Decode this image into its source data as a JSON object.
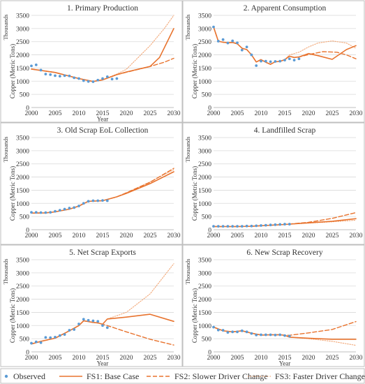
{
  "colors": {
    "observed": "#5b9bd5",
    "fs1": "#e8732e",
    "fs2": "#e8732e",
    "fs3": "#f2a878"
  },
  "legend": {
    "observed": "Observed",
    "fs1": "FS1: Base Case",
    "fs2": "FS2: Slower Driver Change",
    "fs3": "FS3: Faster Driver Change"
  },
  "chart_data": [
    {
      "type": "line",
      "title": "1. Primary Production",
      "xlabel": "Year",
      "ylabel": "Copper (Metric Tons)",
      "yunit": "Thousands",
      "xlim": [
        2000,
        2030
      ],
      "ylim": [
        0,
        3500
      ],
      "xticks": [
        "2000",
        "2005",
        "2010",
        "2015",
        "2020",
        "2025",
        "2030"
      ],
      "yticks": [
        "0",
        "500",
        "1000",
        "1500",
        "2000",
        "2500",
        "3000",
        "3500"
      ],
      "grid": true,
      "series": [
        {
          "name": "Observed",
          "style": "scatter",
          "x": [
            2000,
            2001,
            2002,
            2003,
            2004,
            2005,
            2006,
            2007,
            2008,
            2009,
            2010,
            2011,
            2012,
            2013,
            2014,
            2015,
            2016,
            2017,
            2018
          ],
          "y": [
            1580,
            1620,
            1420,
            1270,
            1250,
            1210,
            1190,
            1210,
            1200,
            1130,
            1100,
            1020,
            990,
            980,
            1040,
            1100,
            1170,
            1080,
            1100
          ]
        },
        {
          "name": "FS1: Base Case",
          "style": "solid",
          "x": [
            2000,
            2005,
            2010,
            2013,
            2015,
            2018,
            2020,
            2025,
            2027,
            2030
          ],
          "y": [
            1460,
            1330,
            1100,
            990,
            1050,
            1250,
            1350,
            1560,
            1900,
            3000
          ]
        },
        {
          "name": "FS2: Slower Driver Change",
          "style": "dashed",
          "x": [
            2000,
            2005,
            2010,
            2013,
            2015,
            2018,
            2020,
            2025,
            2028,
            2030
          ],
          "y": [
            1460,
            1330,
            1100,
            990,
            1050,
            1250,
            1340,
            1560,
            1720,
            1870
          ]
        },
        {
          "name": "FS3: Faster Driver Change",
          "style": "dotted",
          "x": [
            2000,
            2005,
            2010,
            2013,
            2015,
            2018,
            2020,
            2025,
            2028,
            2030
          ],
          "y": [
            1460,
            1330,
            1100,
            990,
            1050,
            1270,
            1450,
            2350,
            3000,
            3500
          ]
        }
      ]
    },
    {
      "type": "line",
      "title": "2. Apparent Consumption",
      "xlabel": "",
      "ylabel": "Copper (Metric Tons)",
      "yunit": "Thousands",
      "xlim": [
        2000,
        2030
      ],
      "ylim": [
        0,
        3500
      ],
      "xticks": [
        "2000",
        "2005",
        "2010",
        "2015",
        "2020",
        "2025",
        "2030"
      ],
      "yticks": [
        "0",
        "500",
        "1000",
        "1500",
        "2000",
        "2500",
        "3000",
        "3500"
      ],
      "grid": true,
      "series": [
        {
          "name": "Observed",
          "style": "scatter",
          "x": [
            2000,
            2001,
            2002,
            2003,
            2004,
            2005,
            2006,
            2007,
            2008,
            2009,
            2010,
            2011,
            2012,
            2013,
            2014,
            2015,
            2016,
            2017,
            2018
          ],
          "y": [
            3060,
            2520,
            2580,
            2450,
            2530,
            2460,
            2180,
            2300,
            2000,
            1590,
            1760,
            1760,
            1740,
            1750,
            1760,
            1800,
            1850,
            1800,
            1850
          ]
        },
        {
          "name": "FS1: Base Case",
          "style": "solid",
          "x": [
            2000,
            2001,
            2002,
            2003,
            2004,
            2005,
            2006,
            2007,
            2008,
            2009,
            2010,
            2011,
            2012,
            2013,
            2014,
            2015,
            2016,
            2017,
            2018,
            2020,
            2022,
            2025,
            2028,
            2030
          ],
          "y": [
            3060,
            2520,
            2480,
            2460,
            2470,
            2420,
            2250,
            2200,
            2000,
            1730,
            1820,
            1720,
            1640,
            1740,
            1750,
            1820,
            1950,
            1900,
            1920,
            2050,
            1970,
            1830,
            2200,
            2350
          ]
        },
        {
          "name": "FS2: Slower Driver Change",
          "style": "dashed",
          "x": [
            2000,
            2001,
            2002,
            2003,
            2004,
            2005,
            2006,
            2007,
            2008,
            2009,
            2010,
            2011,
            2012,
            2013,
            2014,
            2015,
            2016,
            2017,
            2018,
            2020,
            2023,
            2026,
            2028,
            2030
          ],
          "y": [
            3060,
            2520,
            2480,
            2460,
            2470,
            2420,
            2250,
            2200,
            2000,
            1730,
            1820,
            1720,
            1640,
            1740,
            1750,
            1820,
            1950,
            1900,
            1920,
            2010,
            2120,
            2100,
            2000,
            1850
          ]
        },
        {
          "name": "FS3: Faster Driver Change",
          "style": "dotted",
          "x": [
            2000,
            2001,
            2002,
            2003,
            2004,
            2005,
            2006,
            2007,
            2008,
            2009,
            2010,
            2011,
            2012,
            2013,
            2014,
            2015,
            2016,
            2017,
            2018,
            2020,
            2022,
            2025,
            2028,
            2030
          ],
          "y": [
            3060,
            2520,
            2480,
            2460,
            2470,
            2420,
            2250,
            2200,
            2000,
            1730,
            1820,
            1720,
            1640,
            1740,
            1750,
            1820,
            2000,
            2050,
            2100,
            2300,
            2450,
            2530,
            2450,
            2250
          ]
        }
      ]
    },
    {
      "type": "line",
      "title": "3. Old Scrap EoL Collection",
      "xlabel": "",
      "ylabel": "Copper (Metric Tons)",
      "yunit": "Thousands",
      "xlim": [
        2000,
        2030
      ],
      "ylim": [
        0,
        3500
      ],
      "xticks": [
        "2000",
        "2005",
        "2010",
        "2015",
        "2020",
        "2025",
        "2030"
      ],
      "yticks": [
        "0",
        "500",
        "1000",
        "1500",
        "2000",
        "2500",
        "3000",
        "3500"
      ],
      "grid": true,
      "series": [
        {
          "name": "Observed",
          "style": "scatter",
          "x": [
            2000,
            2001,
            2002,
            2003,
            2004,
            2005,
            2006,
            2007,
            2008,
            2009,
            2010,
            2011,
            2012,
            2013,
            2014,
            2015,
            2016
          ],
          "y": [
            660,
            660,
            650,
            650,
            660,
            700,
            740,
            780,
            820,
            840,
            900,
            1000,
            1080,
            1100,
            1100,
            1110,
            1100
          ]
        },
        {
          "name": "FS1: Base Case",
          "style": "solid",
          "x": [
            2000,
            2003,
            2005,
            2008,
            2010,
            2012,
            2015,
            2016,
            2018,
            2020,
            2025,
            2030
          ],
          "y": [
            630,
            640,
            680,
            780,
            900,
            1080,
            1100,
            1150,
            1250,
            1380,
            1750,
            2200
          ]
        },
        {
          "name": "FS2: Slower Driver Change",
          "style": "dashed",
          "x": [
            2000,
            2003,
            2005,
            2008,
            2010,
            2012,
            2015,
            2016,
            2018,
            2020,
            2025,
            2030
          ],
          "y": [
            630,
            640,
            680,
            780,
            900,
            1080,
            1100,
            1150,
            1250,
            1400,
            1800,
            2330
          ]
        },
        {
          "name": "FS3: Faster Driver Change",
          "style": "dotted",
          "x": [
            2000,
            2003,
            2005,
            2008,
            2010,
            2012,
            2015,
            2016,
            2018,
            2020,
            2025,
            2030
          ],
          "y": [
            630,
            640,
            680,
            780,
            900,
            1080,
            1100,
            1150,
            1250,
            1400,
            1820,
            2280
          ]
        }
      ]
    },
    {
      "type": "line",
      "title": "4. Landfilled Scrap",
      "xlabel": "",
      "ylabel": "Copper (Metric Tons)",
      "yunit": "Thousands",
      "xlim": [
        2000,
        2030
      ],
      "ylim": [
        0,
        3500
      ],
      "xticks": [
        "2000",
        "2005",
        "2010",
        "2015",
        "2020",
        "2025",
        "2030"
      ],
      "yticks": [
        "0",
        "500",
        "1000",
        "1500",
        "2000",
        "2500",
        "3000",
        "3500"
      ],
      "grid": true,
      "series": [
        {
          "name": "Observed",
          "style": "scatter",
          "x": [
            2000,
            2001,
            2002,
            2003,
            2004,
            2005,
            2006,
            2007,
            2008,
            2009,
            2010,
            2011,
            2012,
            2013,
            2014,
            2015,
            2016
          ],
          "y": [
            130,
            130,
            130,
            130,
            130,
            130,
            130,
            140,
            140,
            150,
            160,
            170,
            180,
            190,
            200,
            210,
            210
          ]
        },
        {
          "name": "FS1: Base Case",
          "style": "solid",
          "x": [
            2000,
            2005,
            2008,
            2010,
            2015,
            2020,
            2025,
            2030
          ],
          "y": [
            120,
            120,
            130,
            150,
            200,
            260,
            320,
            420
          ]
        },
        {
          "name": "FS2: Slower Driver Change",
          "style": "dashed",
          "x": [
            2000,
            2005,
            2008,
            2010,
            2015,
            2020,
            2025,
            2030
          ],
          "y": [
            120,
            120,
            130,
            150,
            200,
            280,
            430,
            650
          ]
        },
        {
          "name": "FS3: Faster Driver Change",
          "style": "dotted",
          "x": [
            2000,
            2005,
            2008,
            2010,
            2015,
            2020,
            2025,
            2030
          ],
          "y": [
            120,
            120,
            130,
            150,
            200,
            250,
            300,
            360
          ]
        }
      ]
    },
    {
      "type": "line",
      "title": "5. Net Scrap Exports",
      "xlabel": "Year",
      "ylabel": "Copper (Metric Tons)",
      "yunit": "Thousands",
      "xlim": [
        2000,
        2030
      ],
      "ylim": [
        0,
        3500
      ],
      "xticks": [
        "2000",
        "2005",
        "2010",
        "2015",
        "2020",
        "2025",
        "2030"
      ],
      "yticks": [
        "0",
        "500",
        "1000",
        "1500",
        "2000",
        "2500",
        "3000",
        "3500"
      ],
      "grid": true,
      "series": [
        {
          "name": "Observed",
          "style": "scatter",
          "x": [
            2000,
            2001,
            2002,
            2003,
            2004,
            2005,
            2006,
            2007,
            2008,
            2009,
            2010,
            2011,
            2012,
            2013,
            2014,
            2015,
            2016
          ],
          "y": [
            330,
            380,
            350,
            550,
            540,
            560,
            620,
            660,
            820,
            850,
            1060,
            1240,
            1200,
            1180,
            1160,
            1000,
            920
          ]
        },
        {
          "name": "FS1: Base Case",
          "style": "solid",
          "x": [
            2000,
            2002,
            2005,
            2008,
            2010,
            2011,
            2012,
            2013,
            2014,
            2015,
            2016,
            2020,
            2025,
            2030
          ],
          "y": [
            300,
            400,
            520,
            800,
            1000,
            1180,
            1150,
            1120,
            1100,
            1050,
            1250,
            1320,
            1430,
            1160
          ]
        },
        {
          "name": "FS2: Slower Driver Change",
          "style": "dashed",
          "x": [
            2000,
            2002,
            2005,
            2008,
            2010,
            2011,
            2012,
            2013,
            2014,
            2015,
            2016,
            2020,
            2025,
            2030
          ],
          "y": [
            300,
            400,
            520,
            800,
            1000,
            1180,
            1150,
            1120,
            1100,
            1050,
            1000,
            760,
            480,
            260
          ]
        },
        {
          "name": "FS3: Faster Driver Change",
          "style": "dotted",
          "x": [
            2000,
            2002,
            2005,
            2008,
            2010,
            2011,
            2012,
            2013,
            2014,
            2015,
            2016,
            2020,
            2025,
            2030
          ],
          "y": [
            300,
            400,
            520,
            800,
            1000,
            1180,
            1150,
            1120,
            1100,
            1050,
            1250,
            1500,
            2200,
            3350
          ]
        }
      ]
    },
    {
      "type": "line",
      "title": "6. New Scrap Recovery",
      "xlabel": "Year",
      "ylabel": "Copper (Metric Tons)",
      "yunit": "Thousands",
      "xlim": [
        2000,
        2030
      ],
      "ylim": [
        0,
        3500
      ],
      "xticks": [
        "2000",
        "2005",
        "2010",
        "2015",
        "2020",
        "2025",
        "2030"
      ],
      "yticks": [
        "0",
        "500",
        "1000",
        "1500",
        "2000",
        "2500",
        "3000",
        "3500"
      ],
      "grid": true,
      "series": [
        {
          "name": "Observed",
          "style": "scatter",
          "x": [
            2000,
            2001,
            2002,
            2003,
            2004,
            2005,
            2006,
            2007,
            2008,
            2009,
            2010,
            2011,
            2012,
            2013,
            2014,
            2015,
            2016
          ],
          "y": [
            940,
            830,
            820,
            740,
            760,
            760,
            800,
            760,
            700,
            640,
            650,
            650,
            650,
            640,
            650,
            620,
            600
          ]
        },
        {
          "name": "FS1: Base Case",
          "style": "solid",
          "x": [
            2000,
            2002,
            2004,
            2006,
            2008,
            2010,
            2012,
            2014,
            2015,
            2016,
            2020,
            2025,
            2030
          ],
          "y": [
            940,
            800,
            760,
            800,
            710,
            640,
            650,
            650,
            630,
            560,
            520,
            480,
            480
          ]
        },
        {
          "name": "FS2: Slower Driver Change",
          "style": "dashed",
          "x": [
            2000,
            2002,
            2004,
            2006,
            2008,
            2010,
            2012,
            2014,
            2015,
            2016,
            2020,
            2025,
            2030
          ],
          "y": [
            940,
            800,
            760,
            800,
            710,
            640,
            650,
            650,
            630,
            630,
            720,
            850,
            1150
          ]
        },
        {
          "name": "FS3: Faster Driver Change",
          "style": "dotted",
          "x": [
            2000,
            2002,
            2004,
            2006,
            2008,
            2010,
            2012,
            2014,
            2015,
            2016,
            2020,
            2025,
            2030
          ],
          "y": [
            940,
            800,
            760,
            800,
            710,
            640,
            650,
            650,
            630,
            560,
            500,
            400,
            250
          ]
        }
      ]
    }
  ]
}
